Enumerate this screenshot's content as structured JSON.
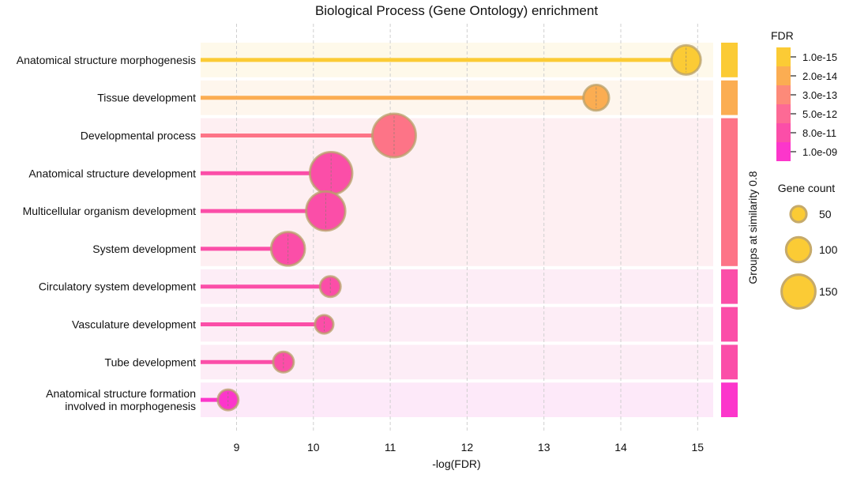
{
  "chart_data": {
    "type": "lollipop",
    "title": "Biological Process (Gene Ontology) enrichment",
    "xlabel": "-log(FDR)",
    "xlim": [
      8.55,
      15.2
    ],
    "xticks": [
      9,
      10,
      11,
      12,
      13,
      14,
      15
    ],
    "grid": "vertical dashed",
    "categories": [
      "Anatomical structure morphogenesis",
      "Tissue development",
      "Developmental process",
      "Anatomical structure development",
      "Multicellular organism development",
      "System development",
      "Circulatory system development",
      "Vasculature development",
      "Tube development",
      "Anatomical structure formation involved in morphogenesis"
    ],
    "category_lines": [
      [
        "Anatomical structure morphogenesis"
      ],
      [
        "Tissue development"
      ],
      [
        "Developmental process"
      ],
      [
        "Anatomical structure development"
      ],
      [
        "Multicellular organism development"
      ],
      [
        "System development"
      ],
      [
        "Circulatory system development"
      ],
      [
        "Vasculature development"
      ],
      [
        "Tube development"
      ],
      [
        "Anatomical structure formation",
        "involved in morphogenesis"
      ]
    ],
    "values": [
      14.85,
      13.68,
      11.05,
      10.23,
      10.16,
      9.67,
      10.22,
      10.14,
      9.61,
      8.89
    ],
    "gene_counts": [
      95,
      78,
      160,
      155,
      140,
      115,
      55,
      45,
      55,
      55
    ],
    "colors": [
      "#fbcb35",
      "#fbad52",
      "#fd7487",
      "#fb4ea8",
      "#fb4ea8",
      "#fb4ea8",
      "#fb4ea8",
      "#fb4ea8",
      "#fb4ea8",
      "#fc36cb"
    ],
    "groups": [
      {
        "rows": [
          0
        ],
        "color": "#fbcb35",
        "bg": "#fef9ea"
      },
      {
        "rows": [
          1
        ],
        "color": "#fbad52",
        "bg": "#fef6ed"
      },
      {
        "rows": [
          2,
          3,
          4,
          5
        ],
        "color": "#fd7487",
        "bg": "#feeff2"
      },
      {
        "rows": [
          6
        ],
        "color": "#fb4ea8",
        "bg": "#fdedf6"
      },
      {
        "rows": [
          7
        ],
        "color": "#fb4ea8",
        "bg": "#fdedf6"
      },
      {
        "rows": [
          8
        ],
        "color": "#fb4ea8",
        "bg": "#fdedf6"
      },
      {
        "rows": [
          9
        ],
        "color": "#fc36cb",
        "bg": "#fde9f9"
      }
    ],
    "group_axis_label": "Groups at similarity 0.8",
    "fdr_legend": {
      "title": "FDR",
      "labels": [
        "1.0e-15",
        "2.0e-14",
        "3.0e-13",
        "5.0e-12",
        "8.0e-11",
        "1.0e-09"
      ],
      "colors": [
        "#fbcb35",
        "#fbad52",
        "#fd8a79",
        "#fd6a95",
        "#fb4ea8",
        "#fc36cb"
      ]
    },
    "size_legend": {
      "title": "Gene count",
      "counts": [
        50,
        100,
        150
      ],
      "labels": [
        "50",
        "100",
        "150"
      ],
      "fill": "#fbcb35"
    }
  }
}
